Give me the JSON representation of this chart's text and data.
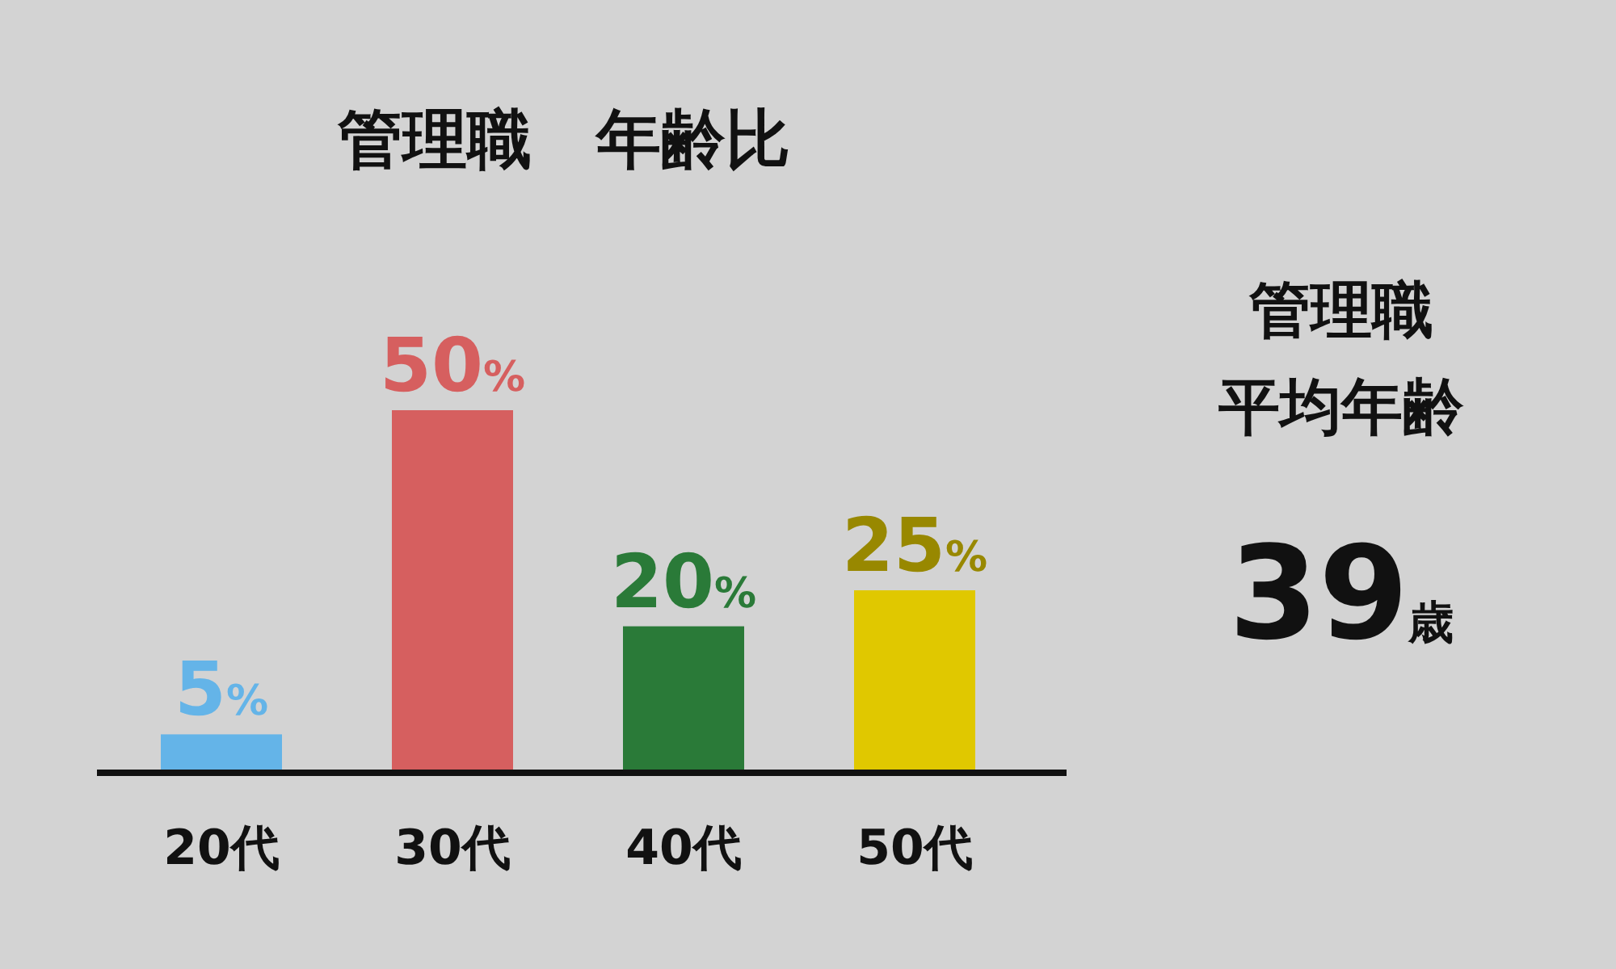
{
  "chart_data": [
    {
      "type": "bar",
      "title": "管理職　年齢比",
      "categories": [
        "20代",
        "30代",
        "40代",
        "50代"
      ],
      "values": [
        5,
        50,
        20,
        25
      ],
      "colors": [
        "#64b4e8",
        "#d65f5f",
        "#2a7a38",
        "#e0c800"
      ],
      "value_labels": [
        "5%",
        "50%",
        "20%",
        "25%"
      ]
    },
    {
      "type": "other",
      "title": "管理職",
      "subtitle": "平均年齢",
      "annotations": [
        "39歳"
      ]
    }
  ]
}
